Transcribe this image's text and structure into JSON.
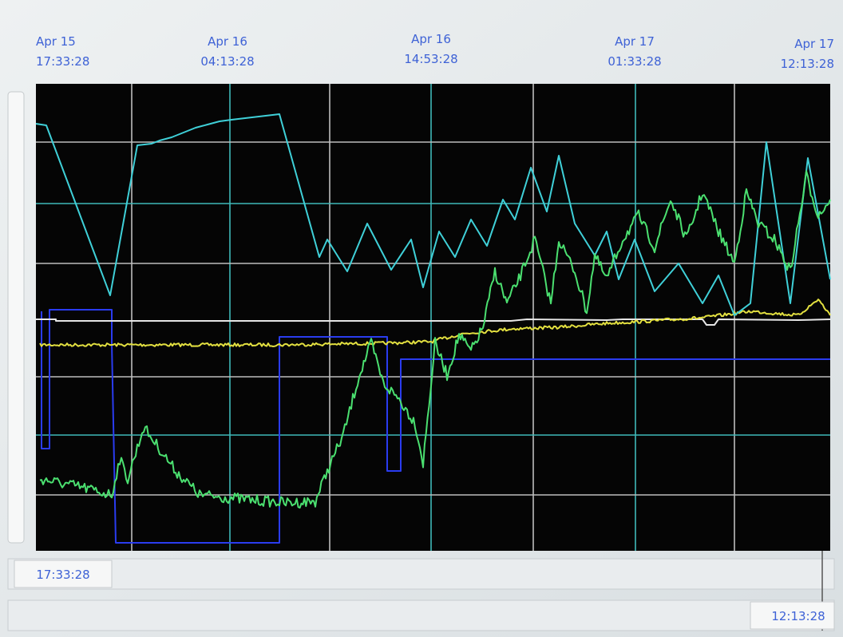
{
  "time_axis": {
    "labels": [
      {
        "date": "Apr 15",
        "time": "17:33:28"
      },
      {
        "date": "Apr 16",
        "time": "04:13:28"
      },
      {
        "date": "Apr 16",
        "time": "14:53:28"
      },
      {
        "date": "Apr 17",
        "time": "01:33:28"
      },
      {
        "date": "Apr 17",
        "time": "12:13:28"
      }
    ]
  },
  "range": {
    "start": "17:33:28",
    "end": "12:13:28"
  }
}
